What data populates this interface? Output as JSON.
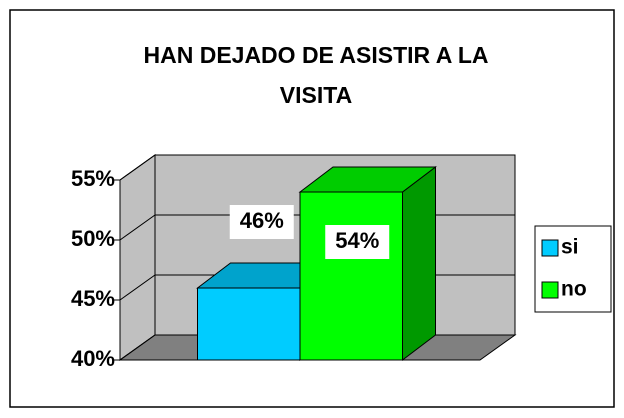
{
  "chart_data": {
    "type": "bar3d",
    "title": "HAN DEJADO DE ASISTIR A LA VISITA",
    "categories": [
      null
    ],
    "series": [
      {
        "name": "si",
        "color": "#00ccff",
        "values": [
          46
        ],
        "value_labels": [
          "46%"
        ]
      },
      {
        "name": "no",
        "color": "#00ff00",
        "values": [
          54
        ],
        "value_labels": [
          "54%"
        ]
      }
    ],
    "ylim": [
      40,
      55
    ],
    "yticks": [
      {
        "value": 40,
        "label": "40%"
      },
      {
        "value": 45,
        "label": "45%"
      },
      {
        "value": 50,
        "label": "50%"
      },
      {
        "value": 55,
        "label": "55%"
      }
    ],
    "grid": true,
    "legend": "right"
  }
}
